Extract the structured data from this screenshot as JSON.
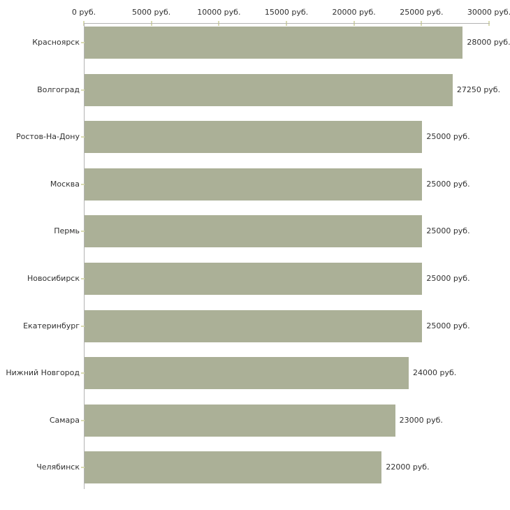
{
  "chart_data": {
    "type": "bar",
    "orientation": "horizontal",
    "title": "",
    "xlabel": "",
    "ylabel": "",
    "unit": "руб.",
    "categories": [
      "Красноярск",
      "Волгоград",
      "Ростов-На-Дону",
      "Москва",
      "Пермь",
      "Новосибирск",
      "Екатеринбург",
      "Нижний Новгород",
      "Самара",
      "Челябинск"
    ],
    "values": [
      28000,
      27250,
      25000,
      25000,
      25000,
      25000,
      25000,
      24000,
      23000,
      22000
    ],
    "value_labels": [
      "28000 руб.",
      "27250 руб.",
      "25000 руб.",
      "25000 руб.",
      "25000 руб.",
      "25000 руб.",
      "25000 руб.",
      "24000 руб.",
      "23000 руб.",
      "22000 руб."
    ],
    "x_axis": {
      "position": "top",
      "min": 0,
      "max": 30000,
      "ticks": [
        0,
        5000,
        10000,
        15000,
        20000,
        25000,
        30000
      ],
      "tick_labels": [
        "0 руб.",
        "5000 руб.",
        "10000 руб.",
        "15000 руб.",
        "20000 руб.",
        "25000 руб.",
        "30000 руб."
      ]
    },
    "grid": false,
    "legend": false,
    "colors": {
      "bar": "#abb097",
      "axis_line": "#b3b3b3",
      "tick_mark": "#d8dab1",
      "text": "#303030",
      "background": "#ffffff"
    }
  }
}
